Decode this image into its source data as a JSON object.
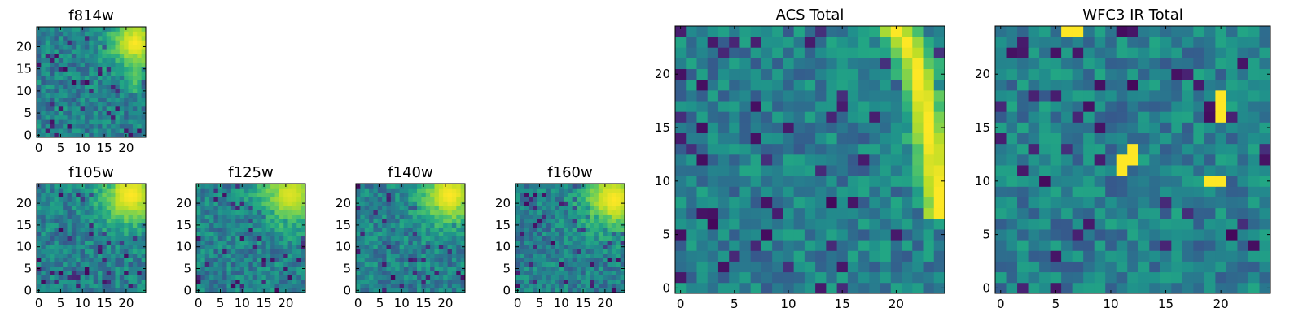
{
  "chart_data": [
    {
      "type": "heatmap",
      "title": "f814w",
      "xlim": [
        -0.5,
        24.5
      ],
      "ylim": [
        -0.5,
        24.5
      ],
      "xticks": [
        0,
        5,
        10,
        15,
        20
      ],
      "yticks": [
        0,
        5,
        10,
        15,
        20
      ],
      "colormap": "viridis",
      "grid_size": [
        25,
        25
      ],
      "bright_region": {
        "center": [
          22,
          21
        ],
        "radius": 4,
        "arc_toward": [
          22,
          10
        ],
        "peak": 1.0
      }
    },
    {
      "type": "heatmap",
      "title": "f105w",
      "xlim": [
        -0.5,
        24.5
      ],
      "ylim": [
        -0.5,
        24.5
      ],
      "xticks": [
        0,
        5,
        10,
        15,
        20
      ],
      "yticks": [
        0,
        5,
        10,
        15,
        20
      ],
      "colormap": "viridis",
      "grid_size": [
        25,
        25
      ],
      "bright_region": {
        "center": [
          21,
          22
        ],
        "radius": 5,
        "peak": 1.0
      }
    },
    {
      "type": "heatmap",
      "title": "f125w",
      "xlim": [
        -0.5,
        24.5
      ],
      "ylim": [
        -0.5,
        24.5
      ],
      "xticks": [
        0,
        5,
        10,
        15,
        20
      ],
      "yticks": [
        0,
        5,
        10,
        15,
        20
      ],
      "colormap": "viridis",
      "grid_size": [
        25,
        25
      ],
      "bright_region": {
        "center": [
          21,
          22
        ],
        "radius": 5,
        "peak": 0.95
      }
    },
    {
      "type": "heatmap",
      "title": "f140w",
      "xlim": [
        -0.5,
        24.5
      ],
      "ylim": [
        -0.5,
        24.5
      ],
      "xticks": [
        0,
        5,
        10,
        15,
        20
      ],
      "yticks": [
        0,
        5,
        10,
        15,
        20
      ],
      "colormap": "viridis",
      "grid_size": [
        25,
        25
      ],
      "bright_region": {
        "center": [
          21,
          22
        ],
        "radius": 5,
        "peak": 1.0
      }
    },
    {
      "type": "heatmap",
      "title": "f160w",
      "xlim": [
        -0.5,
        24.5
      ],
      "ylim": [
        -0.5,
        24.5
      ],
      "xticks": [
        0,
        5,
        10,
        15,
        20
      ],
      "yticks": [
        0,
        5,
        10,
        15,
        20
      ],
      "colormap": "viridis",
      "grid_size": [
        25,
        25
      ],
      "bright_region": {
        "center": [
          22,
          21
        ],
        "radius": 5,
        "peak": 1.0
      }
    },
    {
      "type": "heatmap",
      "title": "ACS Total",
      "xlim": [
        -0.5,
        24.5
      ],
      "ylim": [
        -0.5,
        24.5
      ],
      "xticks": [
        0,
        5,
        10,
        15,
        20
      ],
      "yticks": [
        0,
        5,
        10,
        15,
        20
      ],
      "colormap": "viridis",
      "grid_size": [
        25,
        25
      ],
      "bright_region": {
        "arc_from": [
          20,
          24
        ],
        "arc_to": [
          24,
          8
        ],
        "peak": 1.0
      }
    },
    {
      "type": "heatmap",
      "title": "WFC3 IR Total",
      "xlim": [
        -0.5,
        24.5
      ],
      "ylim": [
        -0.5,
        24.5
      ],
      "xticks": [
        0,
        5,
        10,
        15,
        20
      ],
      "yticks": [
        0,
        5,
        10,
        15,
        20
      ],
      "colormap": "viridis",
      "grid_size": [
        25,
        25
      ],
      "hot_pixels": [
        [
          6,
          24
        ],
        [
          7,
          24
        ],
        [
          20,
          18
        ],
        [
          20,
          17
        ],
        [
          20,
          16
        ],
        [
          11,
          12
        ],
        [
          11,
          11
        ],
        [
          12,
          12
        ],
        [
          12,
          13
        ],
        [
          19,
          10
        ],
        [
          20,
          10
        ]
      ]
    }
  ]
}
